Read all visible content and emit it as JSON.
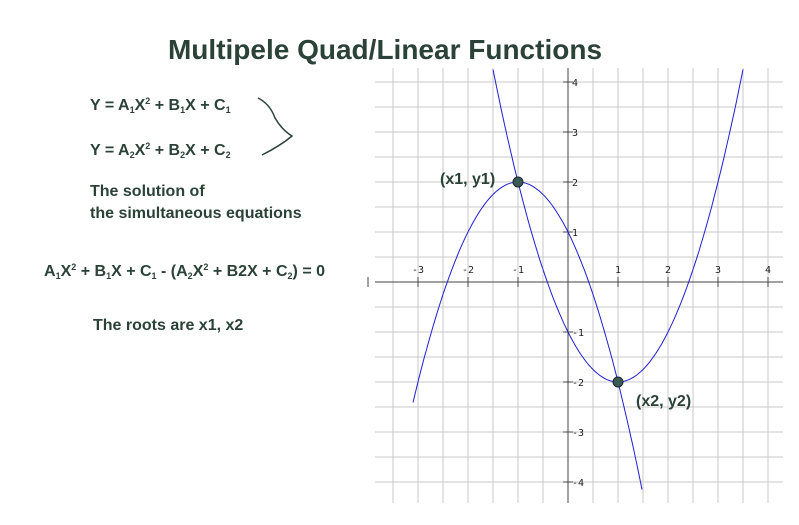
{
  "title": "Multipele Quad/Linear Functions",
  "eq1": {
    "y": "Y = A",
    "s1": "1",
    "x2": "X",
    "p2": "2",
    "b": " + B",
    "s2": "1",
    "bx": "X + C",
    "s3": "1"
  },
  "eq2": {
    "y": "Y = A",
    "s1": "2",
    "x2": "X",
    "p2": "2",
    "b": " + B",
    "s2": "2",
    "bx": "X + C",
    "s3": "2"
  },
  "solution": {
    "line1": "The solution of",
    "line2": "the simultaneous equations"
  },
  "combined": {
    "a": "A",
    "s1": "1",
    "x": "X",
    "p": "2",
    "b": " + B",
    "s2": "1",
    "c": "X + C",
    "s3": "1",
    "mid": " - (A",
    "s4": "2",
    "x2": "X",
    "p2": "2",
    "d": " + B2X + C",
    "s5": "2",
    "end": ") = 0"
  },
  "roots": "The roots are x1, x2",
  "chart_data": {
    "type": "line",
    "x_ticks": [
      "-3",
      "-2",
      "-1",
      "1",
      "2",
      "3",
      "4"
    ],
    "y_ticks": [
      "4",
      "3",
      "2",
      "1",
      "-1",
      "-2",
      "-3",
      "-4"
    ],
    "x_tick_values": [
      -3,
      -2,
      -1,
      1,
      2,
      3,
      4
    ],
    "y_tick_values": [
      4,
      3,
      2,
      1,
      -1,
      -2,
      -3,
      -4
    ],
    "xlim": [
      -4,
      4
    ],
    "ylim": [
      -4.4,
      4.4
    ],
    "grid": true,
    "series": [
      {
        "formula": "y = -x^2 - 2x + 1",
        "color": "#1f1fd0",
        "x_range": [
          -3.1,
          1.48
        ]
      },
      {
        "formula": "y = x^2 - 2x - 1",
        "color": "#1f1fd0",
        "x_range": [
          -1.5,
          3.5
        ]
      }
    ],
    "points": [
      {
        "label": "(x1, y1)",
        "x": -1,
        "y": 2
      },
      {
        "label": "(x2, y2)",
        "x": 1,
        "y": -2
      }
    ]
  }
}
